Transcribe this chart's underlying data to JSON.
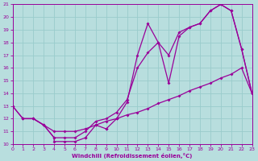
{
  "bg_color": "#b8dede",
  "line_color": "#990099",
  "grid_color": "#99cccc",
  "xlim": [
    0,
    23
  ],
  "ylim": [
    10,
    21
  ],
  "ytick_vals": [
    10,
    11,
    12,
    13,
    14,
    15,
    16,
    17,
    18,
    19,
    20,
    21
  ],
  "xtick_vals": [
    0,
    1,
    2,
    3,
    4,
    5,
    6,
    7,
    8,
    9,
    10,
    11,
    12,
    13,
    14,
    15,
    16,
    17,
    18,
    19,
    20,
    21,
    22,
    23
  ],
  "xlabel": "Windchill (Refroidissement éolien,°C)",
  "series1_x": [
    0,
    1,
    2,
    3,
    4,
    4,
    5,
    6,
    7,
    7,
    8,
    8,
    9,
    9,
    10,
    10,
    11,
    12,
    13,
    14,
    15,
    16,
    17,
    18,
    19,
    20,
    21,
    22,
    23
  ],
  "series1_y": [
    13,
    12,
    12,
    11.5,
    10.5,
    10.2,
    10.2,
    10.2,
    10.5,
    10.5,
    11.5,
    11.5,
    11.2,
    11.2,
    12,
    12,
    13.3,
    17,
    19.5,
    18,
    14.8,
    18.5,
    19.2,
    19.5,
    20.5,
    21,
    20.5,
    17.5,
    14
  ],
  "series2_x": [
    1,
    2,
    3,
    4,
    5,
    6,
    7,
    8,
    9,
    10,
    11,
    12,
    13,
    14,
    15,
    16,
    17,
    18,
    19,
    20,
    21,
    22,
    23
  ],
  "series2_y": [
    12,
    12,
    11.5,
    10.5,
    10.5,
    10.5,
    11,
    11.8,
    12,
    12.5,
    13.5,
    16,
    17.2,
    18,
    17,
    18.8,
    19.2,
    19.5,
    20.5,
    21,
    20.5,
    17.5,
    14
  ],
  "series3_x": [
    0,
    1,
    2,
    3,
    4,
    5,
    6,
    7,
    8,
    9,
    10,
    11,
    12,
    13,
    14,
    15,
    16,
    17,
    18,
    19,
    20,
    21,
    22,
    23
  ],
  "series3_y": [
    13,
    12,
    12,
    11.5,
    11,
    11,
    11,
    11.2,
    11.5,
    11.8,
    12,
    12.3,
    12.5,
    12.8,
    13.2,
    13.5,
    13.8,
    14.2,
    14.5,
    14.8,
    15.2,
    15.5,
    16,
    14
  ]
}
